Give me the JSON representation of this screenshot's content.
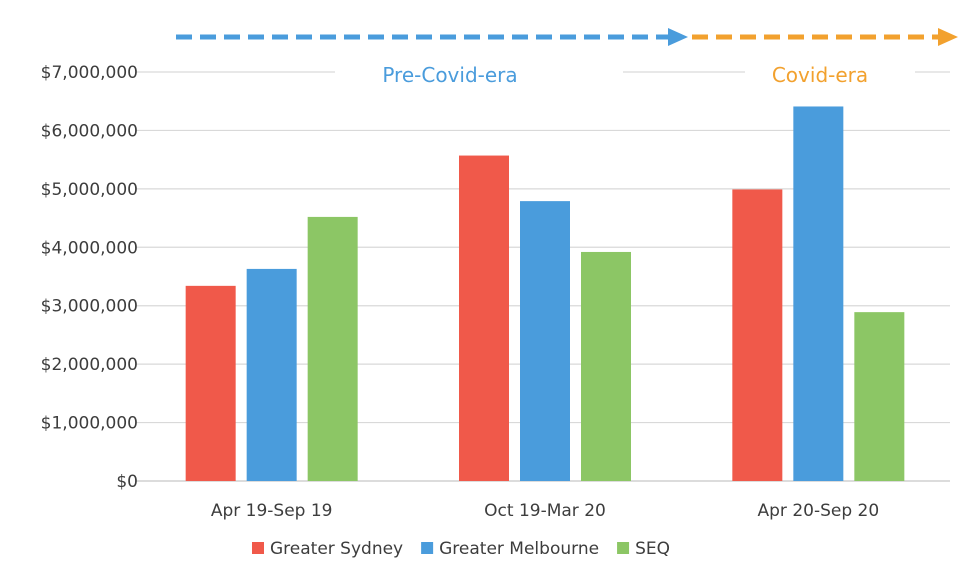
{
  "chart_data": {
    "type": "bar",
    "categories": [
      "Apr 19-Sep 19",
      "Oct 19-Mar 20",
      "Apr 20-Sep 20"
    ],
    "series": [
      {
        "name": "Greater Sydney",
        "color": "#f0594a",
        "values": [
          3340000,
          5570000,
          4990000
        ]
      },
      {
        "name": "Greater Melbourne",
        "color": "#4a9cdc",
        "values": [
          3630000,
          4790000,
          6410000
        ]
      },
      {
        "name": "SEQ",
        "color": "#8cc665",
        "values": [
          4520000,
          3920000,
          2890000
        ]
      }
    ],
    "ylim": [
      0,
      7000000
    ],
    "yticks": [
      "$0",
      "$1,000,000",
      "$2,000,000",
      "$3,000,000",
      "$4,000,000",
      "$5,000,000",
      "$6,000,000",
      "$7,000,000"
    ],
    "grid": true,
    "legend_position": "bottom",
    "annotations": {
      "pre_covid": {
        "label": "Pre-Covid-era",
        "color": "#4a9cdc"
      },
      "covid": {
        "label": "Covid-era",
        "color": "#f2a12e"
      }
    }
  }
}
